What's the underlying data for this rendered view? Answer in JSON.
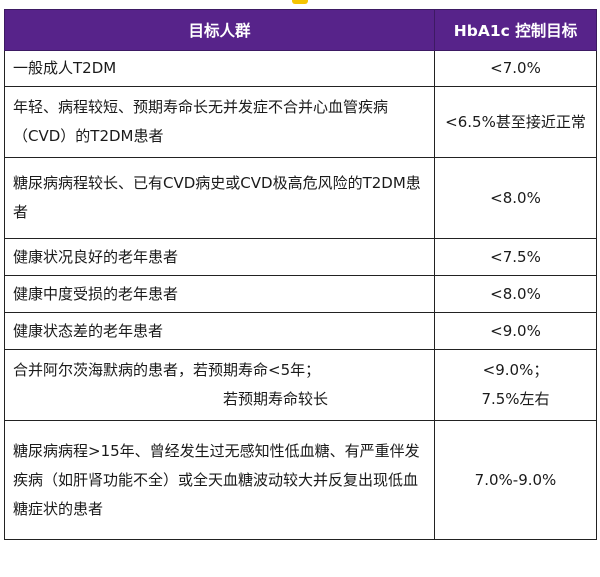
{
  "header": {
    "col1": "目标人群",
    "col2": "HbA1c 控制目标"
  },
  "rows": [
    {
      "group": "一般成人T2DM",
      "target": "<7.0%"
    },
    {
      "group": "年轻、病程较短、预期寿命长无并发症不合并心血管疾病（CVD）的T2DM患者",
      "target": "<6.5%甚至接近正常"
    },
    {
      "group": "糖尿病病程较长、已有CVD病史或CVD极高危风险的T2DM患者",
      "target": "<8.0%"
    },
    {
      "group": "健康状况良好的老年患者",
      "target": "<7.5%"
    },
    {
      "group": "健康中度受损的老年患者",
      "target": "<8.0%"
    },
    {
      "group": "健康状态差的老年患者",
      "target": "<9.0%"
    },
    {
      "group_line1": "合并阿尔茨海默病的患者，若预期寿命<5年；",
      "group_line2": "若预期寿命较长",
      "target_line1": "<9.0%；",
      "target_line2": "7.5%左右"
    },
    {
      "group": "糖尿病病程>15年、曾经发生过无感知性低血糖、有严重伴发疾病（如肝肾功能不全）或全天血糖波动较大并反复出现低血糖症状的患者",
      "target": "7.0%-9.0%"
    }
  ]
}
